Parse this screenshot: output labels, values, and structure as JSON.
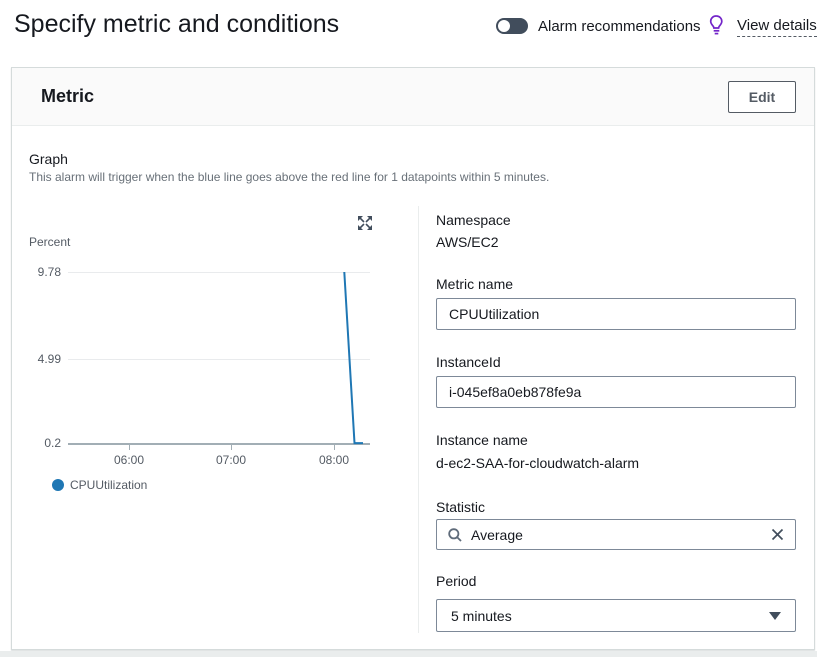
{
  "header": {
    "title": "Specify metric and conditions",
    "alarm_recommendations_label": "Alarm recommendations",
    "alarm_recommendations_state": "off",
    "view_details_label": "View details"
  },
  "card": {
    "title": "Metric",
    "edit_button_label": "Edit"
  },
  "graph": {
    "section_label": "Graph",
    "description": "This alarm will trigger when the blue line goes above the red line for 1 datapoints within 5 minutes.",
    "unit_label": "Percent",
    "legend_label": "CPUUtilization"
  },
  "chart_data": {
    "type": "line",
    "title": "CPUUtilization",
    "ylabel": "Percent",
    "ylim": [
      0.2,
      9.78
    ],
    "y_ticks": [
      "9.78",
      "4.99",
      "0.2"
    ],
    "x_ticks": [
      "06:00",
      "07:00",
      "08:00"
    ],
    "grid": "horizontal",
    "legend_position": "bottom-left",
    "series": [
      {
        "name": "CPUUtilization",
        "color": "#1f77b4",
        "points": [
          {
            "t": "08:06",
            "v": 9.78
          },
          {
            "t": "08:12",
            "v": 0.25
          },
          {
            "t": "08:17",
            "v": 0.25
          }
        ]
      }
    ]
  },
  "fields": {
    "namespace_label": "Namespace",
    "namespace_value": "AWS/EC2",
    "metric_name_label": "Metric name",
    "metric_name_value": "CPUUtilization",
    "instance_id_label": "InstanceId",
    "instance_id_value": "i-045ef8a0eb878fe9a",
    "instance_name_label": "Instance name",
    "instance_name_value": "d-ec2-SAA-for-cloudwatch-alarm",
    "statistic_label": "Statistic",
    "statistic_value": "Average",
    "period_label": "Period",
    "period_value": "5 minutes"
  },
  "icons": {
    "lightbulb": "lightbulb-icon",
    "expand": "expand-icon",
    "search": "search-icon",
    "clear": "close-icon",
    "caret": "caret-down-icon"
  },
  "colors": {
    "line_blue": "#1f77b4",
    "toggle_track": "#414d5c",
    "lightbulb_purple": "#7325c9",
    "border_gray": "#d5dbdb",
    "input_border": "#7d8998",
    "secondary_text": "#687078"
  }
}
